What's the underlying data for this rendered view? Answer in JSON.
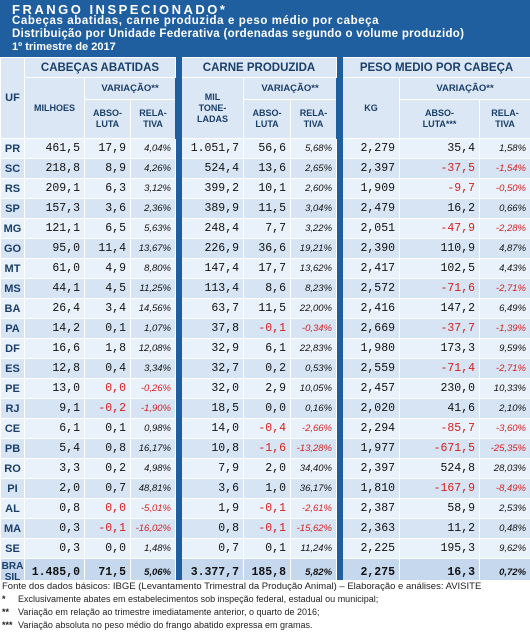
{
  "header": {
    "title": "FRANGO INSPECIONADO*",
    "subtitle": "Cabeças abatidas, carne produzida e peso médio por cabeça",
    "subtitle2": "Distribuição por Unidade Federativa (ordenadas segundo o volume produzido)",
    "period": "1º trimestre de 2017"
  },
  "columns": {
    "uf": "UF",
    "group1": "CABEÇAS ABATIDAS",
    "group2": "CARNE PRODUZIDA",
    "group3": "PESO MEDIO POR CABEÇA",
    "milhoes": "MILHOES",
    "mil_l1": "MIL",
    "mil_l2": "TONE-",
    "mil_l3": "LADAS",
    "kg": "KG",
    "variacao1": "VARIAÇÃO**",
    "variacao2": "VARIAÇÃO**",
    "variacao3": "VARIAÇÃO**",
    "abs_l1": "ABSO-",
    "abs_l2": "LUTA",
    "abs3_l2": "LUTA***",
    "rel_l1": "RELA-",
    "rel_l2": "TIVA"
  },
  "rows": [
    {
      "uf": "PR",
      "cab": "461,5",
      "cab_abs": "17,9",
      "cab_rel": "4,04%",
      "carne": "1.051,7",
      "carne_abs": "56,6",
      "carne_rel": "5,68%",
      "kg": "2,279",
      "kg_abs": "35,4",
      "kg_rel": "1,58%"
    },
    {
      "uf": "SC",
      "cab": "218,8",
      "cab_abs": "8,9",
      "cab_rel": "4,26%",
      "carne": "524,4",
      "carne_abs": "13,6",
      "carne_rel": "2,65%",
      "kg": "2,397",
      "kg_abs": "-37,5",
      "kg_rel": "-1,54%"
    },
    {
      "uf": "RS",
      "cab": "209,1",
      "cab_abs": "6,3",
      "cab_rel": "3,12%",
      "carne": "399,2",
      "carne_abs": "10,1",
      "carne_rel": "2,60%",
      "kg": "1,909",
      "kg_abs": "-9,7",
      "kg_rel": "-0,50%"
    },
    {
      "uf": "SP",
      "cab": "157,3",
      "cab_abs": "3,6",
      "cab_rel": "2,36%",
      "carne": "389,9",
      "carne_abs": "11,5",
      "carne_rel": "3,04%",
      "kg": "2,479",
      "kg_abs": "16,2",
      "kg_rel": "0,66%"
    },
    {
      "uf": "MG",
      "cab": "121,1",
      "cab_abs": "6,5",
      "cab_rel": "5,63%",
      "carne": "248,4",
      "carne_abs": "7,7",
      "carne_rel": "3,22%",
      "kg": "2,051",
      "kg_abs": "-47,9",
      "kg_rel": "-2,28%"
    },
    {
      "uf": "GO",
      "cab": "95,0",
      "cab_abs": "11,4",
      "cab_rel": "13,67%",
      "carne": "226,9",
      "carne_abs": "36,6",
      "carne_rel": "19,21%",
      "kg": "2,390",
      "kg_abs": "110,9",
      "kg_rel": "4,87%"
    },
    {
      "uf": "MT",
      "cab": "61,0",
      "cab_abs": "4,9",
      "cab_rel": "8,80%",
      "carne": "147,4",
      "carne_abs": "17,7",
      "carne_rel": "13,62%",
      "kg": "2,417",
      "kg_abs": "102,5",
      "kg_rel": "4,43%"
    },
    {
      "uf": "MS",
      "cab": "44,1",
      "cab_abs": "4,5",
      "cab_rel": "11,25%",
      "carne": "113,4",
      "carne_abs": "8,6",
      "carne_rel": "8,23%",
      "kg": "2,572",
      "kg_abs": "-71,6",
      "kg_rel": "-2,71%"
    },
    {
      "uf": "BA",
      "cab": "26,4",
      "cab_abs": "3,4",
      "cab_rel": "14,56%",
      "carne": "63,7",
      "carne_abs": "11,5",
      "carne_rel": "22,00%",
      "kg": "2,416",
      "kg_abs": "147,2",
      "kg_rel": "6,49%"
    },
    {
      "uf": "PA",
      "cab": "14,2",
      "cab_abs": "0,1",
      "cab_rel": "1,07%",
      "carne": "37,8",
      "carne_abs": "-0,1",
      "carne_rel": "-0,34%",
      "kg": "2,669",
      "kg_abs": "-37,7",
      "kg_rel": "-1,39%"
    },
    {
      "uf": "DF",
      "cab": "16,6",
      "cab_abs": "1,8",
      "cab_rel": "12,08%",
      "carne": "32,9",
      "carne_abs": "6,1",
      "carne_rel": "22,83%",
      "kg": "1,980",
      "kg_abs": "173,3",
      "kg_rel": "9,59%"
    },
    {
      "uf": "ES",
      "cab": "12,8",
      "cab_abs": "0,4",
      "cab_rel": "3,34%",
      "carne": "32,7",
      "carne_abs": "0,2",
      "carne_rel": "0,53%",
      "kg": "2,559",
      "kg_abs": "-71,4",
      "kg_rel": "-2,71%"
    },
    {
      "uf": "PE",
      "cab": "13,0",
      "cab_abs": "0,0",
      "cab_rel": "-0,26%",
      "carne": "32,0",
      "carne_abs": "2,9",
      "carne_rel": "10,05%",
      "kg": "2,457",
      "kg_abs": "230,0",
      "kg_rel": "10,33%"
    },
    {
      "uf": "RJ",
      "cab": "9,1",
      "cab_abs": "-0,2",
      "cab_rel": "-1,90%",
      "carne": "18,5",
      "carne_abs": "0,0",
      "carne_rel": "0,16%",
      "kg": "2,020",
      "kg_abs": "41,6",
      "kg_rel": "2,10%"
    },
    {
      "uf": "CE",
      "cab": "6,1",
      "cab_abs": "0,1",
      "cab_rel": "0,98%",
      "carne": "14,0",
      "carne_abs": "-0,4",
      "carne_rel": "-2,66%",
      "kg": "2,294",
      "kg_abs": "-85,7",
      "kg_rel": "-3,60%"
    },
    {
      "uf": "PB",
      "cab": "5,4",
      "cab_abs": "0,8",
      "cab_rel": "16,17%",
      "carne": "10,8",
      "carne_abs": "-1,6",
      "carne_rel": "-13,28%",
      "kg": "1,977",
      "kg_abs": "-671,5",
      "kg_rel": "-25,35%"
    },
    {
      "uf": "RO",
      "cab": "3,3",
      "cab_abs": "0,2",
      "cab_rel": "4,98%",
      "carne": "7,9",
      "carne_abs": "2,0",
      "carne_rel": "34,40%",
      "kg": "2,397",
      "kg_abs": "524,8",
      "kg_rel": "28,03%"
    },
    {
      "uf": "PI",
      "cab": "2,0",
      "cab_abs": "0,7",
      "cab_rel": "48,81%",
      "carne": "3,6",
      "carne_abs": "1,0",
      "carne_rel": "36,17%",
      "kg": "1,810",
      "kg_abs": "-167,9",
      "kg_rel": "-8,49%"
    },
    {
      "uf": "AL",
      "cab": "0,8",
      "cab_abs": "0,0",
      "cab_rel": "-5,01%",
      "carne": "1,9",
      "carne_abs": "-0,1",
      "carne_rel": "-2,61%",
      "kg": "2,387",
      "kg_abs": "58,9",
      "kg_rel": "2,53%"
    },
    {
      "uf": "MA",
      "cab": "0,3",
      "cab_abs": "-0,1",
      "cab_rel": "-16,02%",
      "carne": "0,8",
      "carne_abs": "-0,1",
      "carne_rel": "-15,62%",
      "kg": "2,363",
      "kg_abs": "11,2",
      "kg_rel": "0,48%"
    },
    {
      "uf": "SE",
      "cab": "0,3",
      "cab_abs": "0,0",
      "cab_rel": "1,48%",
      "carne": "0,7",
      "carne_abs": "0,1",
      "carne_rel": "11,24%",
      "kg": "2,225",
      "kg_abs": "195,3",
      "kg_rel": "9,62%"
    }
  ],
  "total": {
    "uf_l1": "BRA",
    "uf_l2": "SIL",
    "cab": "1.485,0",
    "cab_abs": "71,5",
    "cab_rel": "5,06%",
    "carne": "3.377,7",
    "carne_abs": "185,8",
    "carne_rel": "5,82%",
    "kg": "2,275",
    "kg_abs": "16,3",
    "kg_rel": "0,72%"
  },
  "footer": {
    "source": "Fonte dos dados básicos: IBGE (Levantamento Trimestral da Produção Animal) – Elaboração e análises: AVISITE",
    "n1_mark": "*",
    "n1": "Exclusivamente abates em estabelecimentos sob inspeção federal, estadual ou municipal;",
    "n2_mark": "**",
    "n2": "Variação em relação ao trimestre imediatamente anterior, o quarto de 2016;",
    "n3_mark": "***",
    "n3": "Variação absoluta no peso médio do frango abatido expressa em gramas."
  },
  "colors": {
    "header_bg": "#1f5f9f",
    "row_light": "#e9f1fa",
    "row_dark": "#d6e4f3",
    "negative": "#d42020"
  }
}
